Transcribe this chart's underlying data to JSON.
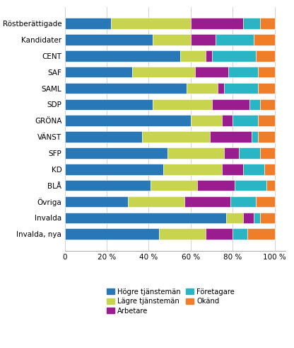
{
  "categories": [
    "Röstberättigade",
    "Kandidater",
    "CENT",
    "SAF",
    "SAML",
    "SDP",
    "GRÖNA",
    "VÄNST",
    "SFP",
    "KD",
    "BLÅ",
    "Övriga",
    "Invalda",
    "Invalda, nya"
  ],
  "segments": {
    "Högre tjänstemän": [
      22,
      42,
      55,
      32,
      58,
      42,
      60,
      37,
      49,
      47,
      41,
      30,
      77,
      45
    ],
    "Lägre tjänstemän": [
      38,
      18,
      12,
      30,
      15,
      28,
      15,
      32,
      27,
      28,
      22,
      27,
      8,
      22
    ],
    "Arbetare": [
      25,
      12,
      3,
      16,
      3,
      18,
      5,
      20,
      7,
      10,
      18,
      22,
      5,
      13
    ],
    "Företagare": [
      8,
      18,
      21,
      14,
      16,
      5,
      12,
      3,
      10,
      10,
      15,
      12,
      3,
      7
    ],
    "Okänd": [
      7,
      10,
      9,
      8,
      8,
      7,
      8,
      8,
      7,
      5,
      4,
      9,
      7,
      13
    ]
  },
  "colors": {
    "Högre tjänstemän": "#2878b8",
    "Lägre tjänstemän": "#c8d44e",
    "Arbetare": "#9b1c8e",
    "Företagare": "#2ab5c5",
    "Okänd": "#f07d28"
  },
  "xlabel": "",
  "ylabel": "",
  "background_color": "#ffffff",
  "bar_height": 0.68,
  "figsize": [
    4.16,
    4.91
  ],
  "dpi": 100,
  "legend_cols": 2,
  "legend_order": [
    "Högre tjänstemän",
    "Lägre tjänstemän",
    "Arbetare",
    "Företagare",
    "Okänd"
  ]
}
